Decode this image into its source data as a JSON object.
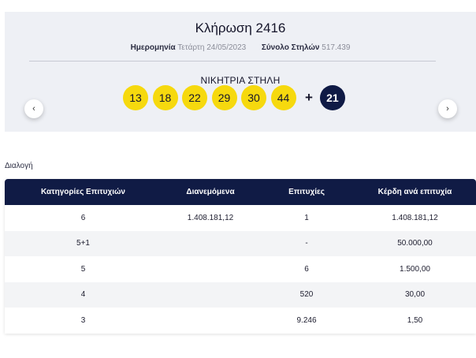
{
  "draw": {
    "title": "Κλήρωση 2416",
    "date_label": "Ημερομηνία",
    "date_value": "Τετάρτη 24/05/2023",
    "columns_label": "Σύνολο Στηλών",
    "columns_value": "517.439",
    "winning_label": "ΝΙΚΗΤΡΙΑ ΣΤΗΛΗ",
    "numbers": [
      "13",
      "18",
      "22",
      "29",
      "30",
      "44"
    ],
    "plus": "+",
    "joker": "21",
    "prev_icon": "‹",
    "next_icon": "›"
  },
  "section_label": "Διαλογή",
  "table": {
    "headers": [
      "Κατηγορίες Επιτυχιών",
      "Διανεμόμενα",
      "Επιτυχίες",
      "Κέρδη ανά επιτυχία"
    ],
    "rows": [
      [
        "6",
        "1.408.181,12",
        "1",
        "1.408.181,12"
      ],
      [
        "5+1",
        "",
        "-",
        "50.000,00"
      ],
      [
        "5",
        "",
        "6",
        "1.500,00"
      ],
      [
        "4",
        "",
        "520",
        "30,00"
      ],
      [
        "3",
        "",
        "9.246",
        "1,50"
      ]
    ]
  },
  "colors": {
    "panel_bg": "#eef0f5",
    "ball_yellow": "#f6d90e",
    "joker_navy": "#0f1a45",
    "header_navy": "#101b45"
  }
}
